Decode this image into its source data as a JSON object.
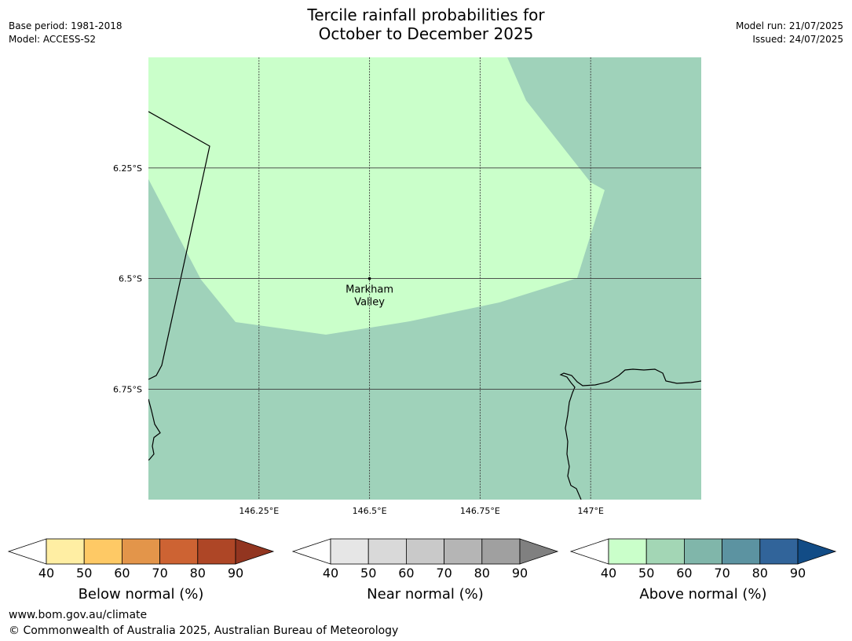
{
  "header": {
    "title_line1": "Tercile rainfall probabilities for",
    "title_line2": "October to December 2025",
    "base_period": "Base period: 1981-2018",
    "model": "Model: ACCESS-S2",
    "model_run": "Model run: 21/07/2025",
    "issued": "Issued: 24/07/2025"
  },
  "map": {
    "lon_range": [
      146.0,
      147.25
    ],
    "lat_range": [
      -6.0,
      -7.0
    ],
    "lon_ticks": [
      {
        "value": 146.25,
        "label": "146.25°E"
      },
      {
        "value": 146.5,
        "label": "146.5°E"
      },
      {
        "value": 146.75,
        "label": "146.75°E"
      },
      {
        "value": 147.0,
        "label": "147°E"
      }
    ],
    "lat_ticks": [
      {
        "value": -6.25,
        "label": "6.25°S"
      },
      {
        "value": -6.5,
        "label": "6.5°S"
      },
      {
        "value": -6.75,
        "label": "6.75°S"
      }
    ],
    "place": {
      "name_line1": "Markham",
      "name_line2": "Valley",
      "lon": 146.5,
      "lat": -6.5
    },
    "colors": {
      "above_40_50": "#caffca",
      "above_50_60": "#9fd2ba"
    }
  },
  "legends": [
    {
      "id": "below",
      "label": "Below normal (%)",
      "ticks": [
        "40",
        "50",
        "60",
        "70",
        "80",
        "90"
      ],
      "colors": [
        "#ffeea3",
        "#fec965",
        "#e3954a",
        "#cd6333",
        "#ae4626",
        "#923520"
      ]
    },
    {
      "id": "near",
      "label": "Near normal (%)",
      "ticks": [
        "40",
        "50",
        "60",
        "70",
        "80",
        "90"
      ],
      "colors": [
        "#e6e6e6",
        "#d9d9d9",
        "#c9c9c9",
        "#b5b5b5",
        "#a0a0a0",
        "#808080"
      ]
    },
    {
      "id": "above",
      "label": "Above normal (%)",
      "ticks": [
        "40",
        "50",
        "60",
        "70",
        "80",
        "90"
      ],
      "colors": [
        "#caffca",
        "#a3d6b5",
        "#80b6aa",
        "#5c93a1",
        "#31649a",
        "#124c86"
      ]
    }
  ],
  "footer": {
    "url": "www.bom.gov.au/climate",
    "copyright": "© Commonwealth of Australia 2025, Australian Bureau of Meteorology"
  }
}
